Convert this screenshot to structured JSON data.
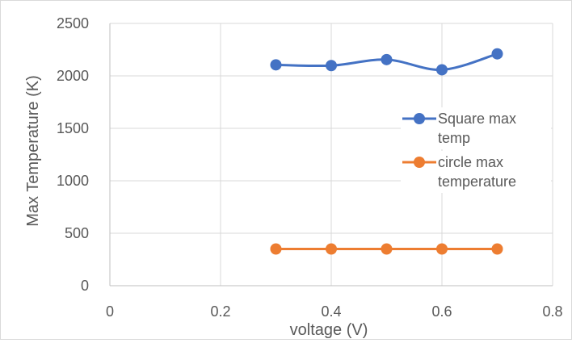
{
  "chart_data": {
    "type": "scatter",
    "xlabel": "voltage (V)",
    "ylabel": "Max Temperature (K)",
    "xlim": [
      0,
      0.8
    ],
    "ylim": [
      0,
      2500
    ],
    "xticks": [
      "0",
      "0.2",
      "0.4",
      "0.6",
      "0.8"
    ],
    "yticks": [
      "0",
      "500",
      "1000",
      "1500",
      "2000",
      "2500"
    ],
    "grid": true,
    "legend_position": "right",
    "series": [
      {
        "name": "Square max temp",
        "name_lines": [
          "Square max",
          "temp"
        ],
        "color": "#4472c4",
        "x": [
          0.3,
          0.4,
          0.5,
          0.6,
          0.7
        ],
        "y": [
          2105,
          2098,
          2155,
          2058,
          2210
        ]
      },
      {
        "name": "circle max temperature",
        "name_lines": [
          "circle max",
          "temperature"
        ],
        "color": "#ed7d31",
        "x": [
          0.3,
          0.4,
          0.5,
          0.6,
          0.7
        ],
        "y": [
          350,
          350,
          350,
          350,
          350
        ]
      }
    ]
  }
}
